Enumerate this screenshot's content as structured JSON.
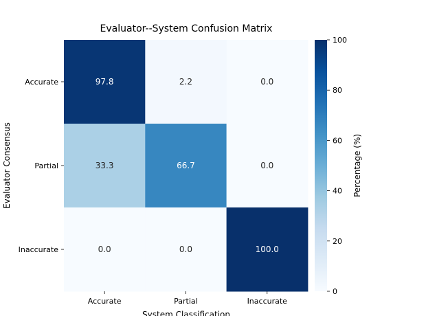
{
  "chart_data": {
    "type": "heatmap",
    "title": "Evaluator--System Confusion Matrix",
    "xlabel": "System Classification",
    "ylabel": "Evaluator Consensus",
    "x_categories": [
      "Accurate",
      "Partial",
      "Inaccurate"
    ],
    "y_categories": [
      "Accurate",
      "Partial",
      "Inaccurate"
    ],
    "values": [
      [
        97.8,
        2.2,
        0.0
      ],
      [
        33.3,
        66.7,
        0.0
      ],
      [
        0.0,
        0.0,
        100.0
      ]
    ],
    "colorbar": {
      "label": "Percentage (%)",
      "range": [
        0,
        100
      ],
      "ticks": [
        "0",
        "20",
        "40",
        "60",
        "80",
        "100"
      ],
      "colormap": "Blues"
    },
    "grid": false
  }
}
